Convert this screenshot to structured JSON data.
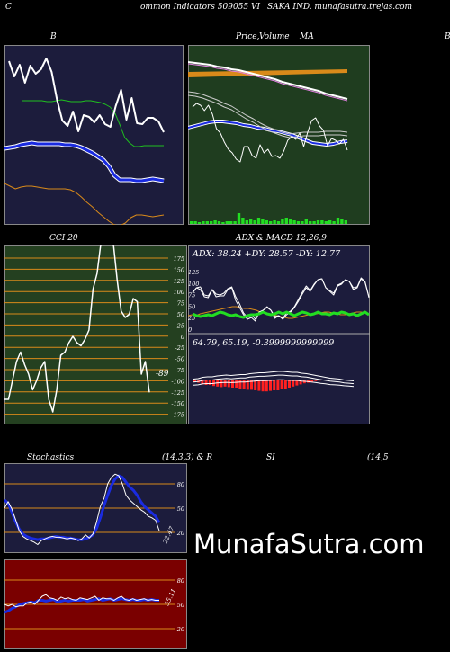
{
  "header": {
    "left": "C",
    "center": "ommon  Indicators 509055 VI",
    "right": "SAKA IND. munafasutra.trejas.com"
  },
  "panels": {
    "bb": {
      "title": "B"
    },
    "price": {
      "title_price": "Price,",
      "title_overlap": "Volume",
      "title_ma": "MA",
      "title_right": "B"
    },
    "cci": {
      "title": "CCI 20",
      "ticks": [
        "175",
        "150",
        "125",
        "100",
        "75",
        "50",
        "25",
        "0",
        "-25",
        "-50",
        "-75",
        "-100",
        "-125",
        "-150",
        "-175"
      ],
      "last_label": "-89"
    },
    "adx": {
      "title": "ADX  & MACD 12,26,9",
      "readout": "ADX: 38.24  +DY: 28.57 -DY: 12.77",
      "ticks": [
        "125",
        "100",
        "75",
        "50",
        "25",
        "0"
      ]
    },
    "macd": {
      "readout": "64.79,  65.19,  -0.3999999999999"
    },
    "stoch": {
      "title_left": "Stochastics",
      "title_params": "(14,3,3) & R",
      "ticks": [
        "80",
        "50",
        "20"
      ],
      "last_label": "22.47"
    },
    "rsi": {
      "title_left": "SI",
      "title_params": "(14,5",
      "ticks": [
        "80",
        "50",
        "20"
      ],
      "last_label": "55.11"
    }
  },
  "watermark": "MunafaSutra.com",
  "colors": {
    "navy": "#1c1c3c",
    "green_bg": "#1f3d1f",
    "cci_bg": "#244020",
    "rsi_bg": "#7a0000",
    "orange": "#d98a1a",
    "blue": "#1a2be0",
    "lime": "#22dd22"
  },
  "chart_data": [
    {
      "type": "line",
      "name": "bollinger",
      "series": [
        {
          "role": "price",
          "values": [
            68,
            85,
            72,
            92,
            73,
            82,
            77,
            65,
            80,
            111,
            134,
            140,
            124,
            146,
            128,
            130,
            136,
            128,
            138,
            141,
            118,
            100,
            133,
            109,
            137,
            138,
            131,
            131,
            135,
            147
          ]
        },
        {
          "role": "upper",
          "values": [
            62,
            62,
            62,
            62,
            62,
            63,
            63,
            62,
            61,
            62,
            63,
            63,
            63,
            62,
            62,
            63,
            64,
            66,
            69,
            76,
            89,
            103,
            109,
            113,
            113,
            112,
            112,
            112,
            112,
            112
          ]
        },
        {
          "role": "middle",
          "values": [
            115,
            114,
            113,
            111,
            110,
            109,
            110,
            110,
            110,
            110,
            110,
            111,
            111,
            112,
            114,
            117,
            120,
            124,
            128,
            135,
            145,
            150,
            150,
            150,
            151,
            151,
            150,
            149,
            150,
            151
          ]
        },
        {
          "role": "lower",
          "values": [
            154,
            157,
            160,
            158,
            157,
            157,
            158,
            159,
            160,
            160,
            160,
            160,
            161,
            164,
            169,
            175,
            180,
            186,
            191,
            196,
            200,
            201,
            198,
            192,
            189,
            189,
            190,
            191,
            190,
            189
          ]
        }
      ]
    },
    {
      "type": "line",
      "name": "price_ma_volume",
      "series": [
        {
          "role": "price",
          "values": [
            120,
            116,
            118,
            124,
            118,
            128,
            144,
            149,
            159,
            167,
            171,
            178,
            181,
            164,
            164,
            174,
            177,
            162,
            171,
            167,
            175,
            174,
            177,
            169,
            157,
            153,
            156,
            149,
            164,
            148,
            135,
            132,
            141,
            146,
            163,
            155,
            157,
            161,
            156,
            168
          ]
        },
        {
          "role": "ma_long",
          "values": [
            70,
            71,
            72,
            73,
            75,
            76,
            78,
            79,
            81,
            83,
            85,
            87,
            89,
            92,
            94,
            96,
            98,
            100,
            102,
            105,
            107,
            109,
            111
          ]
        },
        {
          "role": "ma_mid",
          "values": [
            103,
            104,
            106,
            109,
            112,
            116,
            119,
            124,
            129,
            133,
            138,
            142,
            145,
            148,
            150,
            149,
            148,
            148,
            148,
            147,
            147,
            147,
            148
          ]
        },
        {
          "role": "ma_short",
          "values": [
            143,
            141,
            139,
            137,
            136,
            136,
            137,
            138,
            140,
            141,
            143,
            144,
            146,
            147,
            149,
            151,
            154,
            157,
            160,
            161,
            162,
            161,
            159,
            158
          ]
        }
      ],
      "volume": [
        3,
        3,
        2,
        3,
        3,
        3,
        4,
        3,
        2,
        3,
        3,
        3,
        12,
        7,
        4,
        6,
        4,
        7,
        5,
        4,
        3,
        4,
        3,
        5,
        7,
        5,
        4,
        3,
        3,
        6,
        3,
        3,
        4,
        4,
        3,
        4,
        3,
        7,
        5,
        4
      ]
    },
    {
      "type": "line",
      "name": "cci",
      "ylim": [
        -175,
        175
      ],
      "values": [
        -100,
        -100,
        -70,
        -40,
        -25,
        -45,
        -60,
        -85,
        -70,
        -50,
        -40,
        -100,
        -120,
        -85,
        -30,
        -25,
        -10,
        0,
        -10,
        -15,
        -5,
        10,
        75,
        100,
        150,
        200,
        180,
        150,
        90,
        40,
        30,
        35,
        60,
        55,
        -60,
        -40,
        -89
      ]
    },
    {
      "type": "line",
      "name": "adx_dmi",
      "series": [
        {
          "role": "adx",
          "values": [
            58,
            56,
            55,
            56,
            57,
            56,
            58,
            60,
            59,
            57,
            56,
            57,
            55,
            54,
            56,
            57,
            57,
            58,
            60,
            58,
            57,
            58,
            60,
            58,
            60,
            58,
            56,
            58,
            60,
            59,
            57,
            58,
            60,
            58,
            58,
            57,
            59,
            58,
            60,
            59,
            57,
            58,
            56,
            58,
            60,
            57
          ]
        },
        {
          "role": "plus_di",
          "values": [
            76,
            82,
            80,
            72,
            71,
            80,
            72,
            73,
            73,
            80,
            82,
            68,
            60,
            52,
            47,
            49,
            45,
            55,
            57,
            60,
            57,
            48,
            51,
            47,
            52,
            55,
            60,
            67,
            75,
            82,
            78,
            85,
            91,
            92,
            82,
            78,
            74,
            84,
            86,
            91,
            89,
            80,
            82,
            92,
            88,
            71
          ]
        },
        {
          "role": "minus_di",
          "values": [
            80,
            85,
            86,
            77,
            76,
            83,
            78,
            77,
            79,
            84,
            86,
            75,
            67,
            57,
            52,
            56,
            50,
            57,
            60,
            64,
            60,
            53,
            54,
            51,
            57,
            59,
            64,
            72,
            80,
            87,
            82,
            89,
            94,
            95,
            85,
            82,
            79,
            88,
            90,
            94,
            92,
            85,
            86,
            96,
            92,
            75
          ]
        },
        {
          "role": "ref_orange",
          "values": [
            27,
            28,
            27,
            29,
            30,
            31,
            32,
            33,
            34,
            35,
            36,
            37,
            37,
            36,
            35,
            35,
            34,
            33,
            31,
            30,
            29,
            28,
            27,
            26,
            25,
            24,
            24,
            25,
            26,
            27,
            28,
            28,
            29,
            30,
            31,
            31,
            30,
            29,
            28,
            28,
            29,
            30,
            31,
            31,
            30,
            28
          ]
        }
      ]
    },
    {
      "type": "bar",
      "name": "macd_histogram",
      "values": [
        -5,
        -6,
        -9,
        -10,
        -10,
        -12,
        -13,
        -14,
        -13,
        -14,
        -15,
        -15,
        -17,
        -18,
        -19,
        -19,
        -20,
        -21,
        -22,
        -22,
        -21,
        -20,
        -20,
        -18,
        -17,
        -15,
        -13,
        -11,
        -9,
        -7,
        -6,
        -5,
        -3,
        -2,
        -1
      ]
    },
    {
      "type": "line",
      "name": "stochastics",
      "ylim": [
        0,
        100
      ],
      "series": [
        {
          "role": "k",
          "values": [
            50,
            58,
            49,
            36,
            22,
            15,
            12,
            10,
            8,
            5,
            10,
            12,
            14,
            15,
            14,
            14,
            13,
            12,
            13,
            12,
            10,
            12,
            17,
            13,
            18,
            33,
            52,
            62,
            80,
            88,
            92,
            90,
            80,
            66,
            60,
            56,
            52,
            48,
            45,
            40,
            38,
            35,
            22
          ]
        },
        {
          "role": "d",
          "values": [
            60,
            56,
            45,
            33,
            24,
            18,
            15,
            13,
            12,
            11,
            12,
            12,
            13,
            14,
            15,
            14,
            14,
            13,
            13,
            12,
            11,
            11,
            12,
            14,
            17,
            25,
            38,
            53,
            66,
            78,
            86,
            90,
            88,
            82,
            76,
            72,
            66,
            58,
            52,
            48,
            44,
            40,
            32
          ]
        }
      ]
    },
    {
      "type": "line",
      "name": "rsi",
      "ylim": [
        0,
        100
      ],
      "series": [
        {
          "role": "rsi_white",
          "values": [
            50,
            48,
            50,
            47,
            48,
            48,
            52,
            53,
            50,
            55,
            60,
            62,
            58,
            57,
            55,
            59,
            57,
            58,
            56,
            55,
            58,
            57,
            56,
            58,
            60,
            55,
            58,
            57,
            57,
            55,
            58,
            60,
            56,
            55,
            57,
            55,
            56,
            57,
            55,
            56,
            55,
            55
          ]
        },
        {
          "role": "rsi_blue",
          "values": [
            40,
            42,
            45,
            47,
            50,
            51,
            52,
            53,
            52,
            55,
            55,
            54,
            55,
            56,
            53,
            54,
            55,
            54,
            55,
            55,
            55,
            56,
            54,
            55,
            56,
            57,
            55,
            56,
            57,
            55,
            56,
            57,
            56,
            55,
            56,
            55,
            55,
            56,
            55,
            56,
            55,
            55
          ]
        }
      ]
    }
  ]
}
